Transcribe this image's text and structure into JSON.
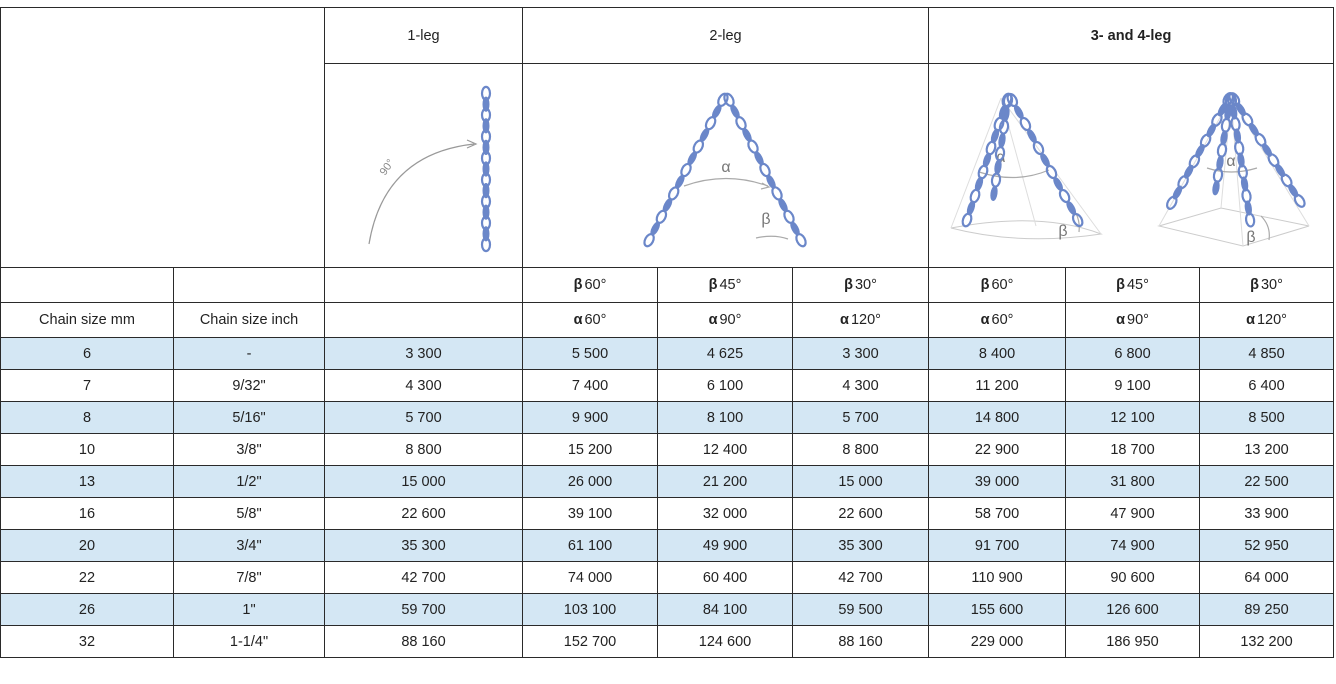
{
  "header": {
    "one_leg": "1-leg",
    "two_leg": "2-leg",
    "three_four_leg": "3- and 4-leg"
  },
  "diagram_labels": {
    "angle_90": "90°",
    "alpha": "α",
    "beta": "β"
  },
  "angle_rows": {
    "beta_symbol": "β",
    "alpha_symbol": "α",
    "beta_values": [
      "60°",
      "45°",
      "30°",
      "60°",
      "45°",
      "30°"
    ],
    "alpha_values": [
      "60°",
      "90°",
      "120°",
      "60°",
      "90°",
      "120°"
    ]
  },
  "columns": {
    "chain_mm": "Chain size mm",
    "chain_inch": "Chain size inch"
  },
  "rows": [
    {
      "mm": "6",
      "inch": "-",
      "values": [
        "3 300",
        "5 500",
        "4 625",
        "3 300",
        "8 400",
        "6 800",
        "4 850"
      ]
    },
    {
      "mm": "7",
      "inch": "9/32\"",
      "values": [
        "4 300",
        "7 400",
        "6 100",
        "4 300",
        "11 200",
        "9 100",
        "6 400"
      ]
    },
    {
      "mm": "8",
      "inch": "5/16\"",
      "values": [
        "5 700",
        "9 900",
        "8 100",
        "5 700",
        "14 800",
        "12 100",
        "8 500"
      ]
    },
    {
      "mm": "10",
      "inch": "3/8\"",
      "values": [
        "8 800",
        "15 200",
        "12 400",
        "8 800",
        "22 900",
        "18 700",
        "13 200"
      ]
    },
    {
      "mm": "13",
      "inch": "1/2\"",
      "values": [
        "15 000",
        "26 000",
        "21 200",
        "15 000",
        "39 000",
        "31 800",
        "22 500"
      ]
    },
    {
      "mm": "16",
      "inch": "5/8\"",
      "values": [
        "22 600",
        "39 100",
        "32 000",
        "22 600",
        "58 700",
        "47 900",
        "33 900"
      ]
    },
    {
      "mm": "20",
      "inch": "3/4\"",
      "values": [
        "35 300",
        "61 100",
        "49 900",
        "35 300",
        "91 700",
        "74 900",
        "52 950"
      ]
    },
    {
      "mm": "22",
      "inch": "7/8\"",
      "values": [
        "42 700",
        "74 000",
        "60 400",
        "42 700",
        "110 900",
        "90 600",
        "64 000"
      ]
    },
    {
      "mm": "26",
      "inch": "1\"",
      "values": [
        "59 700",
        "103 100",
        "84 100",
        "59 500",
        "155 600",
        "126 600",
        "89 250"
      ]
    },
    {
      "mm": "32",
      "inch": "1-1/4\"",
      "values": [
        "88 160",
        "152 700",
        "124 600",
        "88 160",
        "229 000",
        "186 950",
        "132 200"
      ]
    }
  ],
  "colors": {
    "row_shade": "#d4e7f4",
    "chain_blue": "#6b87c9",
    "border": "#2a2a2a"
  }
}
